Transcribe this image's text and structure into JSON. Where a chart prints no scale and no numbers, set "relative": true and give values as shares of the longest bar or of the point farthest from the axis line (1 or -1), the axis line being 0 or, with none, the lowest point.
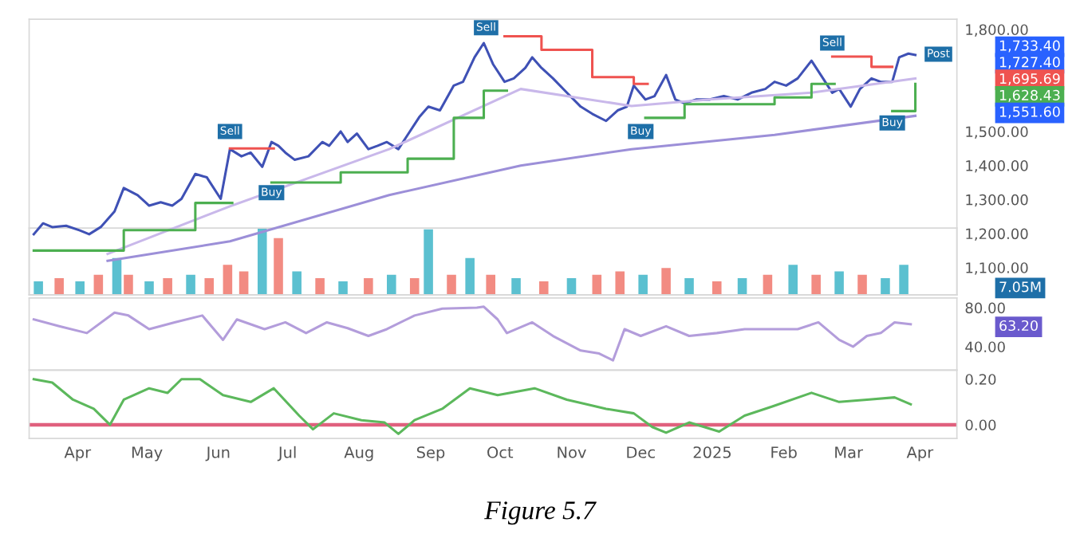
{
  "chart_data": [
    {
      "type": "line",
      "xlim": [
        "2024-03-11",
        "2025-04-17"
      ],
      "ylim": [
        1020,
        1830
      ],
      "yticks": [
        {
          "value": 1100,
          "label": "1,100.00"
        },
        {
          "value": 1200,
          "label": "1,200.00"
        },
        {
          "value": 1300,
          "label": "1,300.00"
        },
        {
          "value": 1400,
          "label": "1,400.00"
        },
        {
          "value": 1500,
          "label": "1,500.00"
        },
        {
          "value": 1800,
          "label": "1,800.00"
        }
      ],
      "tick_labels": "y",
      "annotations": [
        "1,733.40",
        "1,727.40",
        "1,695.69",
        "1,628.43",
        "1,551.60",
        {
          "text": "Post",
          "x": "2025-04-09",
          "y": 1727.4
        },
        {
          "text": "Sell",
          "x": "2024-06-06",
          "y": 1500
        },
        {
          "text": "Buy",
          "x": "2024-06-24",
          "y": 1320
        },
        {
          "text": "Sell",
          "x": "2024-09-25",
          "y": 1805
        },
        {
          "text": "Buy",
          "x": "2024-12-01",
          "y": 1500
        },
        {
          "text": "Sell",
          "x": "2025-02-22",
          "y": 1760
        },
        {
          "text": "Buy",
          "x": "2025-03-20",
          "y": 1525
        }
      ],
      "series": [
        {
          "type": "line",
          "color": "#3f51b5",
          "x": [
            "2024-03-13",
            "2024-03-17",
            "2024-03-21",
            "2024-03-27",
            "2024-04-02",
            "2024-04-06",
            "2024-04-11",
            "2024-04-17",
            "2024-04-21",
            "2024-04-27",
            "2024-05-02",
            "2024-05-07",
            "2024-05-12",
            "2024-05-16",
            "2024-05-22",
            "2024-05-27",
            "2024-06-02",
            "2024-06-06",
            "2024-06-11",
            "2024-06-15",
            "2024-06-20",
            "2024-06-24",
            "2024-06-27",
            "2024-06-30",
            "2024-07-04",
            "2024-07-10",
            "2024-07-16",
            "2024-07-19",
            "2024-07-24",
            "2024-07-27",
            "2024-07-31",
            "2024-08-05",
            "2024-08-09",
            "2024-08-13",
            "2024-08-18",
            "2024-08-22",
            "2024-08-27",
            "2024-08-31",
            "2024-09-05",
            "2024-09-11",
            "2024-09-15",
            "2024-09-20",
            "2024-09-24",
            "2024-09-28",
            "2024-10-03",
            "2024-10-07",
            "2024-10-12",
            "2024-10-15",
            "2024-10-19",
            "2024-10-24",
            "2024-10-30",
            "2024-11-05",
            "2024-11-10",
            "2024-11-16",
            "2024-11-21",
            "2024-11-25",
            "2024-11-28",
            "2024-12-03",
            "2024-12-07",
            "2024-12-12",
            "2024-12-16",
            "2024-12-20",
            "2024-12-25",
            "2024-12-31",
            "2025-01-06",
            "2025-01-12",
            "2025-01-18",
            "2025-01-24",
            "2025-01-28",
            "2025-02-02",
            "2025-02-07",
            "2025-02-13",
            "2025-02-18",
            "2025-02-22",
            "2025-02-25",
            "2025-03-02",
            "2025-03-06",
            "2025-03-11",
            "2025-03-15",
            "2025-03-20",
            "2025-03-23",
            "2025-03-27",
            "2025-03-30"
          ],
          "values": [
            1198,
            1230,
            1219,
            1223,
            1209,
            1198,
            1219,
            1265,
            1334,
            1313,
            1282,
            1292,
            1282,
            1302,
            1375,
            1365,
            1302,
            1448,
            1427,
            1438,
            1396,
            1469,
            1458,
            1438,
            1417,
            1427,
            1469,
            1458,
            1500,
            1469,
            1494,
            1448,
            1458,
            1469,
            1448,
            1490,
            1542,
            1573,
            1562,
            1635,
            1646,
            1718,
            1760,
            1698,
            1646,
            1656,
            1687,
            1718,
            1687,
            1656,
            1614,
            1573,
            1552,
            1531,
            1562,
            1573,
            1635,
            1594,
            1604,
            1666,
            1594,
            1583,
            1594,
            1594,
            1604,
            1594,
            1614,
            1625,
            1646,
            1635,
            1656,
            1708,
            1656,
            1614,
            1625,
            1573,
            1625,
            1656,
            1646,
            1646,
            1718,
            1729,
            1725
          ]
        },
        {
          "type": "line",
          "color": "#c9b8ea",
          "x": [
            "2024-04-14",
            "2024-06-06",
            "2024-08-14",
            "2024-10-10",
            "2024-11-27",
            "2024-12-31",
            "2025-02-13",
            "2025-03-30"
          ],
          "values": [
            1140,
            1280,
            1448,
            1625,
            1575,
            1594,
            1614,
            1656
          ]
        },
        {
          "type": "line",
          "color": "#9c8fd8",
          "x": [
            "2024-04-14",
            "2024-06-06",
            "2024-08-14",
            "2024-10-10",
            "2024-11-27",
            "2025-01-28",
            "2025-03-30"
          ],
          "values": [
            1120,
            1177,
            1313,
            1400,
            1448,
            1490,
            1546
          ]
        },
        {
          "type": "step",
          "color": "#4caf50",
          "x": [
            "2024-03-13",
            "2024-04-21",
            "2024-05-22",
            "2024-06-06",
            "2024-06-07",
            "2024-06-24",
            "2024-07-24",
            "2024-08-22",
            "2024-09-11",
            "2024-09-24",
            "2024-10-03",
            "2024-10-04",
            "2024-12-03",
            "2024-12-20",
            "2025-01-28",
            "2025-02-13",
            "2025-02-22",
            "2025-02-23",
            "2025-03-20",
            "2025-03-30"
          ],
          "values": [
            1150,
            1210,
            1290,
            1290,
            null,
            1350,
            1380,
            1420,
            1540,
            1620,
            1620,
            null,
            1540,
            1580,
            1600,
            1640,
            1640,
            null,
            1560,
            1640
          ]
        },
        {
          "type": "step",
          "color": "#ef5350",
          "x": [
            "2024-06-06",
            "2024-06-24",
            "2024-06-25",
            "2024-10-03",
            "2024-10-19",
            "2024-11-10",
            "2024-11-28",
            "2024-12-03",
            "2024-12-04",
            "2025-02-22",
            "2025-03-11",
            "2025-03-20"
          ],
          "values": [
            1450,
            1450,
            null,
            1780,
            1740,
            1660,
            1640,
            1640,
            null,
            1720,
            1690,
            1690
          ]
        }
      ]
    },
    {
      "type": "bar",
      "relative": true,
      "xlim": [
        "2024-03-11",
        "2025-04-17"
      ],
      "tick_labels": false,
      "annotations": [
        "7.05M"
      ],
      "x": [
        "2024-03-15",
        "2024-03-24",
        "2024-04-02",
        "2024-04-10",
        "2024-04-18",
        "2024-04-23",
        "2024-05-02",
        "2024-05-10",
        "2024-05-20",
        "2024-05-28",
        "2024-06-05",
        "2024-06-12",
        "2024-06-20",
        "2024-06-27",
        "2024-07-05",
        "2024-07-15",
        "2024-07-25",
        "2024-08-05",
        "2024-08-15",
        "2024-08-25",
        "2024-08-31",
        "2024-09-10",
        "2024-09-18",
        "2024-09-27",
        "2024-10-08",
        "2024-10-20",
        "2024-11-01",
        "2024-11-12",
        "2024-11-22",
        "2024-12-02",
        "2024-12-12",
        "2024-12-22",
        "2025-01-03",
        "2025-01-14",
        "2025-01-25",
        "2025-02-05",
        "2025-02-15",
        "2025-02-25",
        "2025-03-07",
        "2025-03-17",
        "2025-03-25"
      ],
      "values": [
        0.2,
        0.25,
        0.2,
        0.3,
        0.55,
        0.3,
        0.2,
        0.25,
        0.3,
        0.25,
        0.45,
        0.35,
        1,
        0.85,
        0.35,
        0.25,
        0.2,
        0.25,
        0.3,
        0.25,
        0.98,
        0.3,
        0.55,
        0.3,
        0.25,
        0.2,
        0.25,
        0.3,
        0.35,
        0.3,
        0.4,
        0.25,
        0.2,
        0.25,
        0.3,
        0.45,
        0.3,
        0.35,
        0.3,
        0.25,
        0.45
      ],
      "colors": [
        "#5bc0d0",
        "#f28b82",
        "#5bc0d0",
        "#f28b82",
        "#5bc0d0",
        "#f28b82",
        "#5bc0d0",
        "#f28b82",
        "#5bc0d0",
        "#f28b82",
        "#f28b82",
        "#f28b82",
        "#5bc0d0",
        "#f28b82",
        "#5bc0d0",
        "#f28b82",
        "#5bc0d0",
        "#f28b82",
        "#5bc0d0",
        "#f28b82",
        "#5bc0d0",
        "#f28b82",
        "#5bc0d0",
        "#f28b82",
        "#5bc0d0",
        "#f28b82",
        "#5bc0d0",
        "#f28b82",
        "#f28b82",
        "#5bc0d0",
        "#f28b82",
        "#5bc0d0",
        "#f28b82",
        "#5bc0d0",
        "#f28b82",
        "#5bc0d0",
        "#f28b82",
        "#5bc0d0",
        "#f28b82",
        "#5bc0d0",
        "#5bc0d0"
      ]
    },
    {
      "type": "line",
      "xlim": [
        "2024-03-11",
        "2025-04-17"
      ],
      "ylim": [
        16,
        90
      ],
      "yticks": [
        {
          "value": 40,
          "label": "40.00"
        },
        {
          "value": 80,
          "label": "80.00"
        }
      ],
      "tick_labels": "y",
      "annotations": [
        "63.20"
      ],
      "series": [
        {
          "color": "#b39ddb",
          "x": [
            "2024-03-13",
            "2024-03-24",
            "2024-04-05",
            "2024-04-17",
            "2024-04-23",
            "2024-05-02",
            "2024-05-13",
            "2024-05-25",
            "2024-06-03",
            "2024-06-09",
            "2024-06-21",
            "2024-06-30",
            "2024-07-09",
            "2024-07-18",
            "2024-07-27",
            "2024-08-05",
            "2024-08-13",
            "2024-08-25",
            "2024-09-06",
            "2024-09-21",
            "2024-09-24",
            "2024-09-30",
            "2024-10-04",
            "2024-10-15",
            "2024-10-24",
            "2024-11-05",
            "2024-11-13",
            "2024-11-19",
            "2024-11-24",
            "2024-12-01",
            "2024-12-12",
            "2024-12-22",
            "2025-01-03",
            "2025-01-15",
            "2025-01-27",
            "2025-02-07",
            "2025-02-16",
            "2025-02-25",
            "2025-03-03",
            "2025-03-09",
            "2025-03-15",
            "2025-03-21",
            "2025-03-28"
          ],
          "values": [
            68,
            61,
            54,
            75,
            72,
            58,
            65,
            72,
            47,
            68,
            58,
            65,
            54,
            65,
            59,
            51,
            58,
            72,
            79,
            80,
            81,
            68,
            54,
            65,
            51,
            36,
            33,
            26,
            58,
            51,
            61,
            51,
            54,
            58,
            58,
            58,
            65,
            47,
            40,
            51,
            54,
            65,
            63
          ]
        }
      ]
    },
    {
      "type": "line",
      "xlim": [
        "2024-03-11",
        "2025-04-17"
      ],
      "ylim": [
        -0.06,
        0.24
      ],
      "yticks": [
        {
          "value": 0,
          "label": "0.00"
        },
        {
          "value": 0.2,
          "label": "0.20"
        }
      ],
      "xticks": [
        {
          "value": "2024-04-01",
          "label": "Apr"
        },
        {
          "value": "2024-05-01",
          "label": "May"
        },
        {
          "value": "2024-06-01",
          "label": "Jun"
        },
        {
          "value": "2024-07-01",
          "label": "Jul"
        },
        {
          "value": "2024-08-01",
          "label": "Aug"
        },
        {
          "value": "2024-09-01",
          "label": "Sep"
        },
        {
          "value": "2024-10-01",
          "label": "Oct"
        },
        {
          "value": "2024-11-01",
          "label": "Nov"
        },
        {
          "value": "2024-12-01",
          "label": "Dec"
        },
        {
          "value": "2025-01-01",
          "label": "2025"
        },
        {
          "value": "2025-02-01",
          "label": "Feb"
        },
        {
          "value": "2025-03-01",
          "label": "Mar"
        },
        {
          "value": "2025-04-01",
          "label": "Apr"
        }
      ],
      "ref_lines": [
        {
          "axis": "y",
          "value": 0,
          "color": "#e0607e"
        }
      ],
      "annotations": [
        "Figure 5.7"
      ],
      "series": [
        {
          "color": "#5cb85c",
          "x": [
            "2024-03-13",
            "2024-03-21",
            "2024-03-30",
            "2024-04-08",
            "2024-04-15",
            "2024-04-21",
            "2024-05-02",
            "2024-05-10",
            "2024-05-16",
            "2024-05-24",
            "2024-06-03",
            "2024-06-15",
            "2024-06-25",
            "2024-07-06",
            "2024-07-12",
            "2024-07-21",
            "2024-08-02",
            "2024-08-12",
            "2024-08-18",
            "2024-08-25",
            "2024-09-06",
            "2024-09-18",
            "2024-09-30",
            "2024-10-16",
            "2024-10-30",
            "2024-11-16",
            "2024-11-28",
            "2024-12-06",
            "2024-12-12",
            "2024-12-22",
            "2025-01-04",
            "2025-01-15",
            "2025-01-27",
            "2025-02-13",
            "2025-02-25",
            "2025-03-09",
            "2025-03-21",
            "2025-03-28"
          ],
          "values": [
            0.2,
            0.185,
            0.11,
            0.07,
            0,
            0.11,
            0.16,
            0.14,
            0.2,
            0.2,
            0.13,
            0.1,
            0.16,
            0.04,
            -0.02,
            0.05,
            0.02,
            0.01,
            -0.04,
            0.02,
            0.07,
            0.16,
            0.13,
            0.16,
            0.11,
            0.07,
            0.05,
            -0.01,
            -0.035,
            0.01,
            -0.03,
            0.04,
            0.08,
            0.14,
            0.1,
            0.11,
            0.12,
            0.09
          ]
        }
      ]
    }
  ]
}
